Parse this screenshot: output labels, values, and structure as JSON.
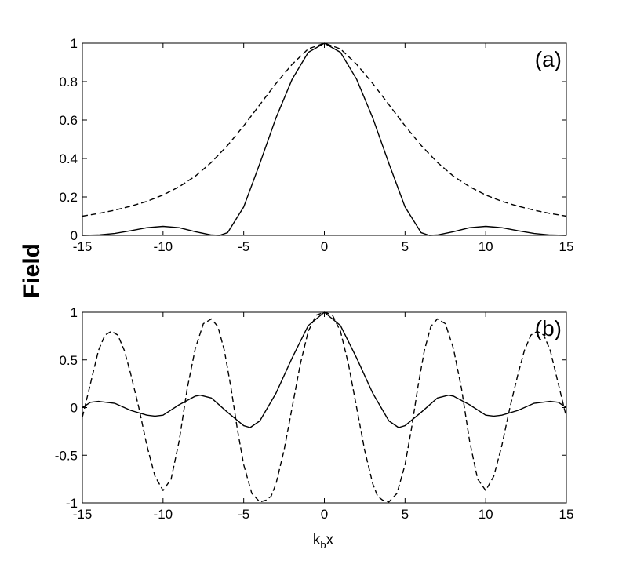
{
  "figure": {
    "ylabel": "Field",
    "xlabel_main": "k",
    "xlabel_sub": "b",
    "xlabel_tail": "x"
  },
  "chart_data": [
    {
      "type": "line",
      "panel_label": "(a)",
      "xlim": [
        -15,
        15
      ],
      "ylim": [
        0,
        1
      ],
      "xticks": [
        -15,
        -10,
        -5,
        0,
        5,
        10,
        15
      ],
      "yticks": [
        0,
        0.2,
        0.4,
        0.6,
        0.8,
        1
      ],
      "ytick_labels": [
        "0",
        "0.2",
        "0.4",
        "0.6",
        "0.8",
        "1"
      ],
      "series": [
        {
          "style": "solid",
          "x": [
            -15,
            -14,
            -13,
            -12,
            -11,
            -10,
            -9,
            -8,
            -7,
            -6.5,
            -6,
            -5,
            -4,
            -3,
            -2,
            -1,
            0,
            1,
            2,
            3,
            4,
            5,
            6,
            6.5,
            7,
            8,
            9,
            10,
            11,
            12,
            13,
            14,
            15
          ],
          "y": [
            0.0,
            0.002,
            0.01,
            0.024,
            0.04,
            0.047,
            0.04,
            0.019,
            0.002,
            0.0,
            0.014,
            0.148,
            0.374,
            0.611,
            0.812,
            0.952,
            1.0,
            0.952,
            0.812,
            0.611,
            0.374,
            0.148,
            0.014,
            0.0,
            0.002,
            0.019,
            0.04,
            0.047,
            0.04,
            0.024,
            0.01,
            0.002,
            0.0
          ]
        },
        {
          "style": "dashed",
          "x": [
            -15,
            -14,
            -13,
            -12,
            -11,
            -10,
            -9,
            -8,
            -7,
            -6,
            -5,
            -4,
            -3,
            -2,
            -1,
            0,
            1,
            2,
            3,
            4,
            5,
            6,
            7,
            8,
            9,
            10,
            11,
            12,
            13,
            14,
            15
          ],
          "y": [
            0.1,
            0.114,
            0.131,
            0.152,
            0.177,
            0.21,
            0.253,
            0.308,
            0.38,
            0.468,
            0.57,
            0.68,
            0.79,
            0.89,
            0.97,
            1.0,
            0.97,
            0.89,
            0.79,
            0.68,
            0.57,
            0.468,
            0.38,
            0.308,
            0.253,
            0.21,
            0.177,
            0.152,
            0.131,
            0.114,
            0.1
          ]
        }
      ]
    },
    {
      "type": "line",
      "panel_label": "(b)",
      "xlim": [
        -15,
        15
      ],
      "ylim": [
        -1,
        1
      ],
      "xticks": [
        -15,
        -10,
        -5,
        0,
        5,
        10,
        15
      ],
      "yticks": [
        -1,
        -0.5,
        0,
        0.5,
        1
      ],
      "ytick_labels": [
        "-1",
        "-0.5",
        "0",
        "0.5",
        "1"
      ],
      "series": [
        {
          "style": "solid",
          "x": [
            -15,
            -14.5,
            -14,
            -13,
            -12,
            -11,
            -10.5,
            -10,
            -9,
            -8,
            -7.7,
            -7,
            -6,
            -5,
            -4.6,
            -4,
            -3,
            -2,
            -1,
            0,
            1,
            2,
            3,
            4,
            4.6,
            5,
            6,
            7,
            7.7,
            8,
            9,
            10,
            10.5,
            11,
            12,
            13,
            14,
            14.5,
            15
          ],
          "y": [
            0.0,
            0.055,
            0.065,
            0.045,
            -0.03,
            -0.08,
            -0.09,
            -0.08,
            0.03,
            0.12,
            0.13,
            0.1,
            -0.05,
            -0.19,
            -0.21,
            -0.14,
            0.15,
            0.52,
            0.86,
            1.0,
            0.86,
            0.52,
            0.15,
            -0.14,
            -0.21,
            -0.19,
            -0.05,
            0.1,
            0.13,
            0.12,
            0.03,
            -0.08,
            -0.09,
            -0.08,
            -0.03,
            0.045,
            0.065,
            0.055,
            0.0
          ]
        },
        {
          "style": "dashed",
          "x": [
            -15,
            -14.5,
            -14,
            -13.6,
            -13.2,
            -12.8,
            -12.4,
            -12,
            -11.5,
            -11,
            -10.5,
            -10,
            -9.5,
            -9,
            -8.5,
            -8,
            -7.5,
            -7,
            -6.6,
            -6.2,
            -5.8,
            -5.4,
            -5,
            -4.5,
            -4,
            -3.6,
            -3.3,
            -3,
            -2.5,
            -2,
            -1.5,
            -1,
            -0.5,
            0,
            0.5,
            1,
            1.5,
            2,
            2.5,
            3,
            3.3,
            3.6,
            4,
            4.5,
            5,
            5.4,
            5.8,
            6.2,
            6.6,
            7,
            7.5,
            8,
            8.5,
            9,
            9.5,
            10,
            10.5,
            11,
            11.5,
            12,
            12.4,
            12.8,
            13.2,
            13.6,
            14,
            14.5,
            15
          ],
          "y": [
            -0.1,
            0.25,
            0.6,
            0.76,
            0.8,
            0.76,
            0.6,
            0.35,
            0.0,
            -0.4,
            -0.72,
            -0.87,
            -0.75,
            -0.35,
            0.2,
            0.62,
            0.88,
            0.93,
            0.85,
            0.6,
            0.22,
            -0.22,
            -0.6,
            -0.9,
            -0.99,
            -0.97,
            -0.93,
            -0.8,
            -0.45,
            0.0,
            0.45,
            0.8,
            0.97,
            1.0,
            0.97,
            0.8,
            0.45,
            0.0,
            -0.45,
            -0.8,
            -0.93,
            -0.97,
            -0.99,
            -0.9,
            -0.6,
            -0.22,
            0.22,
            0.6,
            0.85,
            0.93,
            0.88,
            0.62,
            0.2,
            -0.35,
            -0.75,
            -0.87,
            -0.72,
            -0.4,
            0.0,
            0.35,
            0.6,
            0.76,
            0.8,
            0.76,
            0.6,
            0.25,
            -0.1
          ]
        }
      ]
    }
  ]
}
